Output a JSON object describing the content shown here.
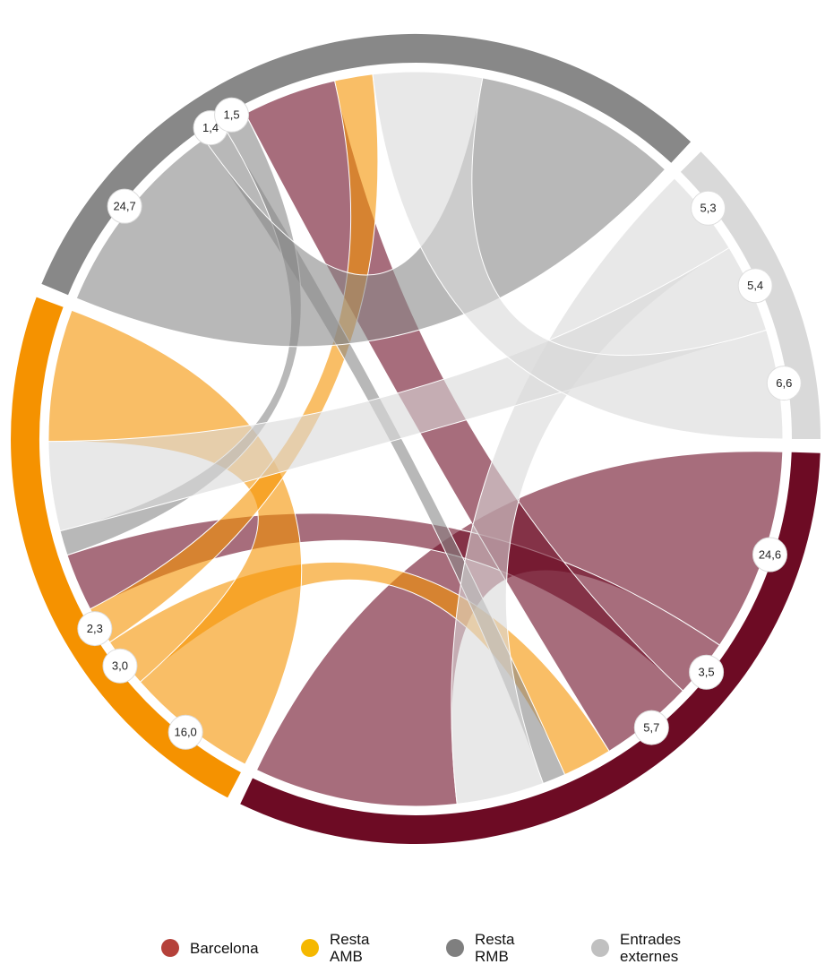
{
  "chart_data": {
    "type": "chord",
    "series": [
      {
        "name": "Barcelona",
        "color": "#b5413a",
        "arc_color": "#6d0b24",
        "values": [
          24.6,
          3.5,
          5.7,
          null
        ],
        "value_labels": [
          "24,6",
          "3,5",
          "5,7",
          null
        ]
      },
      {
        "name": "Resta AMB",
        "color": "#f5b800",
        "arc_color": "#f59200",
        "values": [
          3.0,
          16.0,
          2.3,
          null
        ],
        "value_labels": [
          "3,0",
          "16,0",
          "2,3",
          null
        ]
      },
      {
        "name": "Resta RMB",
        "color": "#7f7f7f",
        "arc_color": "#888888",
        "values": [
          1.4,
          1.5,
          24.7,
          null
        ],
        "value_labels": [
          "1,4",
          "1,5",
          "24,7",
          null
        ]
      },
      {
        "name": "Entrades externes",
        "color": "#c0c0c0",
        "arc_color": "#d9d9d9",
        "values": [
          5.3,
          5.4,
          6.6,
          null
        ],
        "value_labels": [
          "5,3",
          "5,4",
          "6,6",
          null
        ]
      }
    ]
  }
}
